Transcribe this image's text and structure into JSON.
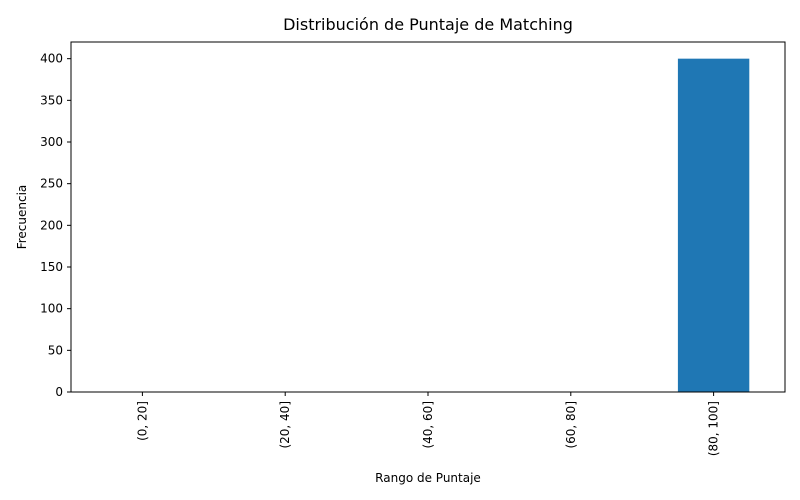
{
  "chart_data": {
    "type": "bar",
    "title": "Distribución de Puntaje de Matching",
    "xlabel": "Rango de Puntaje",
    "ylabel": "Frecuencia",
    "categories": [
      "(0, 20]",
      "(20, 40]",
      "(40, 60]",
      "(60, 80]",
      "(80, 100]"
    ],
    "values": [
      0,
      0,
      0,
      0,
      400
    ],
    "ylim": [
      0,
      420
    ],
    "yticks": [
      0,
      50,
      100,
      150,
      200,
      250,
      300,
      350,
      400
    ],
    "bar_color": "#1f77b4",
    "grid": false,
    "legend": "none"
  }
}
